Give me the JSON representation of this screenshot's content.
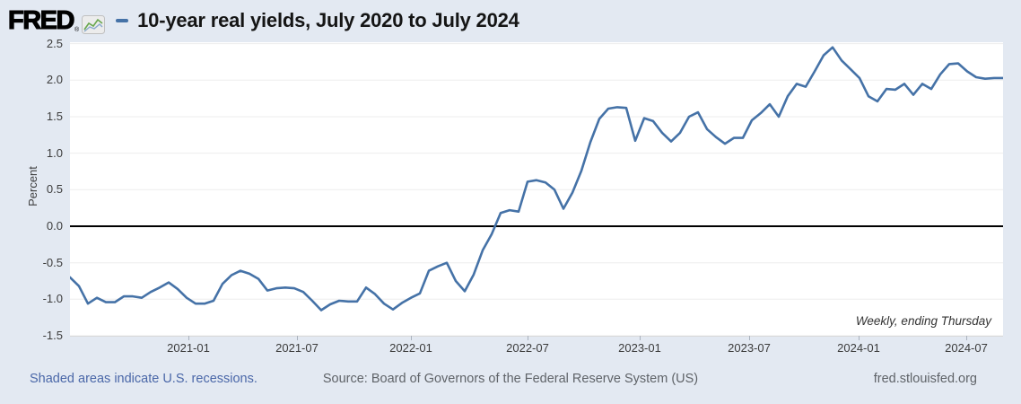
{
  "header": {
    "logo_text": "FRED",
    "registered_mark": "®",
    "title": "10-year real yields, July 2020 to July 2024"
  },
  "chart": {
    "y_axis_label": "Percent",
    "annotation": "Weekly, ending Thursday"
  },
  "footer": {
    "recessions_note": "Shaded areas indicate U.S. recessions.",
    "source": "Source: Board of Governors of the Federal Reserve System (US)",
    "site": "fred.stlouisfed.org"
  },
  "colors": {
    "background": "#e3e9f2",
    "plot_background": "#ffffff",
    "line": "#4572a7",
    "zero_line": "#000000",
    "gridline": "#ededed",
    "link": "#4a67a8"
  },
  "chart_data": {
    "type": "line",
    "title": "10-year real yields, July 2020 to July 2024",
    "ylabel": "Percent",
    "frequency": "Weekly, ending Thursday",
    "grid": "horizontal",
    "zero_line": true,
    "ylim": [
      -1.5,
      2.5
    ],
    "y_ticks": [
      2.5,
      2.0,
      1.5,
      1.0,
      0.5,
      0.0,
      -0.5,
      -1.0,
      -1.5
    ],
    "x_start": "2020-07-02",
    "x_end": "2024-07-25",
    "point_spacing": "approximately biweekly (weekly source data)",
    "x_ticks": [
      {
        "label": "2021-01",
        "pos": 0.127
      },
      {
        "label": "2021-07",
        "pos": 0.243
      },
      {
        "label": "2022-01",
        "pos": 0.365
      },
      {
        "label": "2022-07",
        "pos": 0.49
      },
      {
        "label": "2023-01",
        "pos": 0.611
      },
      {
        "label": "2023-07",
        "pos": 0.728
      },
      {
        "label": "2024-01",
        "pos": 0.845
      },
      {
        "label": "2024-07",
        "pos": 0.961
      }
    ],
    "series": [
      {
        "name": "10-year real yields",
        "color": "#4572a7",
        "values": [
          -0.7,
          -0.82,
          -1.06,
          -0.98,
          -1.04,
          -1.04,
          -0.96,
          -0.96,
          -0.98,
          -0.9,
          -0.84,
          -0.77,
          -0.86,
          -0.98,
          -1.06,
          -1.06,
          -1.02,
          -0.79,
          -0.67,
          -0.61,
          -0.65,
          -0.72,
          -0.88,
          -0.85,
          -0.84,
          -0.85,
          -0.9,
          -1.02,
          -1.15,
          -1.07,
          -1.02,
          -1.03,
          -1.03,
          -0.84,
          -0.93,
          -1.06,
          -1.14,
          -1.05,
          -0.98,
          -0.92,
          -0.61,
          -0.55,
          -0.5,
          -0.75,
          -0.89,
          -0.66,
          -0.33,
          -0.11,
          0.18,
          0.22,
          0.2,
          0.61,
          0.63,
          0.6,
          0.5,
          0.24,
          0.46,
          0.76,
          1.15,
          1.47,
          1.61,
          1.63,
          1.62,
          1.17,
          1.48,
          1.44,
          1.28,
          1.16,
          1.28,
          1.5,
          1.56,
          1.33,
          1.22,
          1.13,
          1.21,
          1.21,
          1.45,
          1.55,
          1.67,
          1.5,
          1.78,
          1.95,
          1.91,
          2.12,
          2.34,
          2.45,
          2.27,
          2.15,
          2.03,
          1.78,
          1.71,
          1.88,
          1.87,
          1.95,
          1.8,
          1.95,
          1.88,
          2.08,
          2.22,
          2.23,
          2.12,
          2.04,
          2.02,
          2.03,
          2.03
        ]
      }
    ]
  }
}
